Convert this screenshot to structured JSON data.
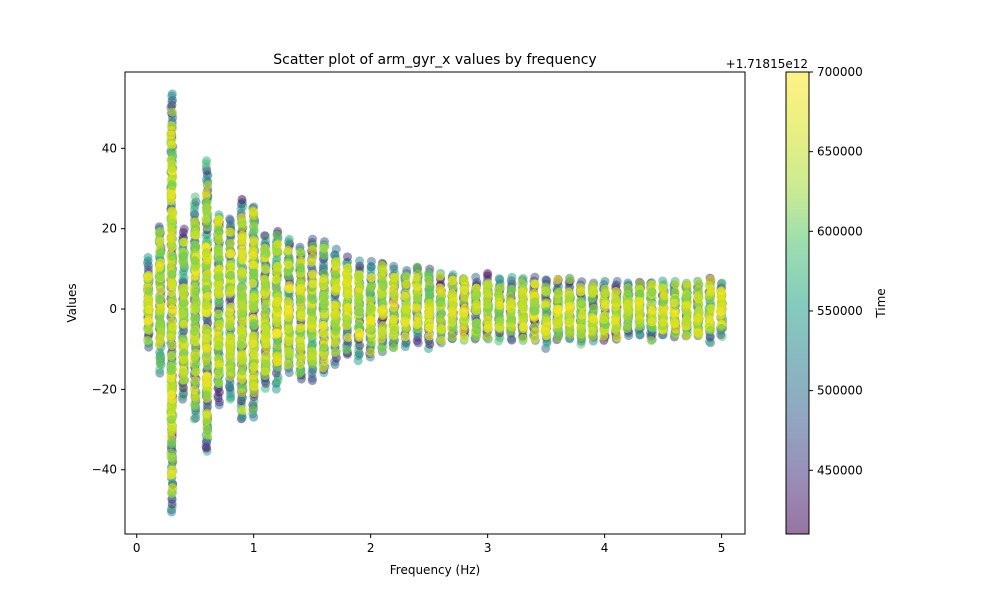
{
  "chart_data": {
    "type": "scatter",
    "title": "Scatter plot of arm_gyr_x values by frequency",
    "xlabel": "Frequency (Hz)",
    "ylabel": "Values",
    "xlim": [
      -0.1,
      5.2
    ],
    "ylim": [
      -56,
      59
    ],
    "xticks": [
      0,
      1,
      2,
      3,
      4,
      5
    ],
    "xtick_labels": [
      "0",
      "1",
      "2",
      "3",
      "4",
      "5"
    ],
    "yticks": [
      -40,
      -20,
      0,
      20,
      40
    ],
    "ytick_labels": [
      "−40",
      "−20",
      "0",
      "20",
      "40"
    ],
    "grid": false,
    "legend": "none",
    "colormap": "viridis",
    "marker_alpha": 0.5,
    "colorbar": {
      "label": "Time",
      "offset_label": "+1.71815e12",
      "range": [
        410000,
        700000
      ],
      "ticks": [
        450000,
        500000,
        550000,
        600000,
        650000,
        700000
      ],
      "tick_labels": [
        "450000",
        "500000",
        "550000",
        "600000",
        "650000",
        "700000"
      ]
    },
    "frequencies": [
      0.1,
      0.2,
      0.3,
      0.4,
      0.5,
      0.6,
      0.7,
      0.8,
      0.9,
      1.0,
      1.1,
      1.2,
      1.3,
      1.4,
      1.5,
      1.6,
      1.7,
      1.8,
      1.9,
      2.0,
      2.1,
      2.2,
      2.3,
      2.4,
      2.5,
      2.6,
      2.7,
      2.8,
      2.9,
      3.0,
      3.1,
      3.2,
      3.3,
      3.4,
      3.5,
      3.6,
      3.7,
      3.8,
      3.9,
      4.0,
      4.1,
      4.2,
      4.3,
      4.4,
      4.5,
      4.6,
      4.7,
      4.8,
      4.9,
      5.0
    ],
    "value_min": [
      -10,
      -16,
      -51,
      -23,
      -28,
      -36,
      -24,
      -23,
      -28,
      -27,
      -20,
      -20,
      -16,
      -18,
      -18,
      -16,
      -14,
      -12,
      -13,
      -12,
      -11,
      -10,
      -10,
      -9,
      -10,
      -9,
      -8,
      -8,
      -8,
      -8,
      -8,
      -8,
      -8,
      -8,
      -10,
      -8,
      -8,
      -9,
      -8,
      -8,
      -8,
      -7,
      -7,
      -8,
      -7,
      -7,
      -7,
      -7,
      -9,
      -7
    ],
    "value_max": [
      13,
      21,
      54,
      20,
      28,
      37,
      24,
      23,
      28,
      26,
      19,
      20,
      18,
      16,
      18,
      17,
      15,
      13,
      12,
      12,
      12,
      11,
      10,
      11,
      10,
      9,
      9,
      8,
      8,
      9,
      8,
      8,
      8,
      8,
      8,
      8,
      8,
      7,
      7,
      7,
      7,
      7,
      7,
      7,
      7,
      7,
      7,
      7,
      8,
      7
    ]
  }
}
